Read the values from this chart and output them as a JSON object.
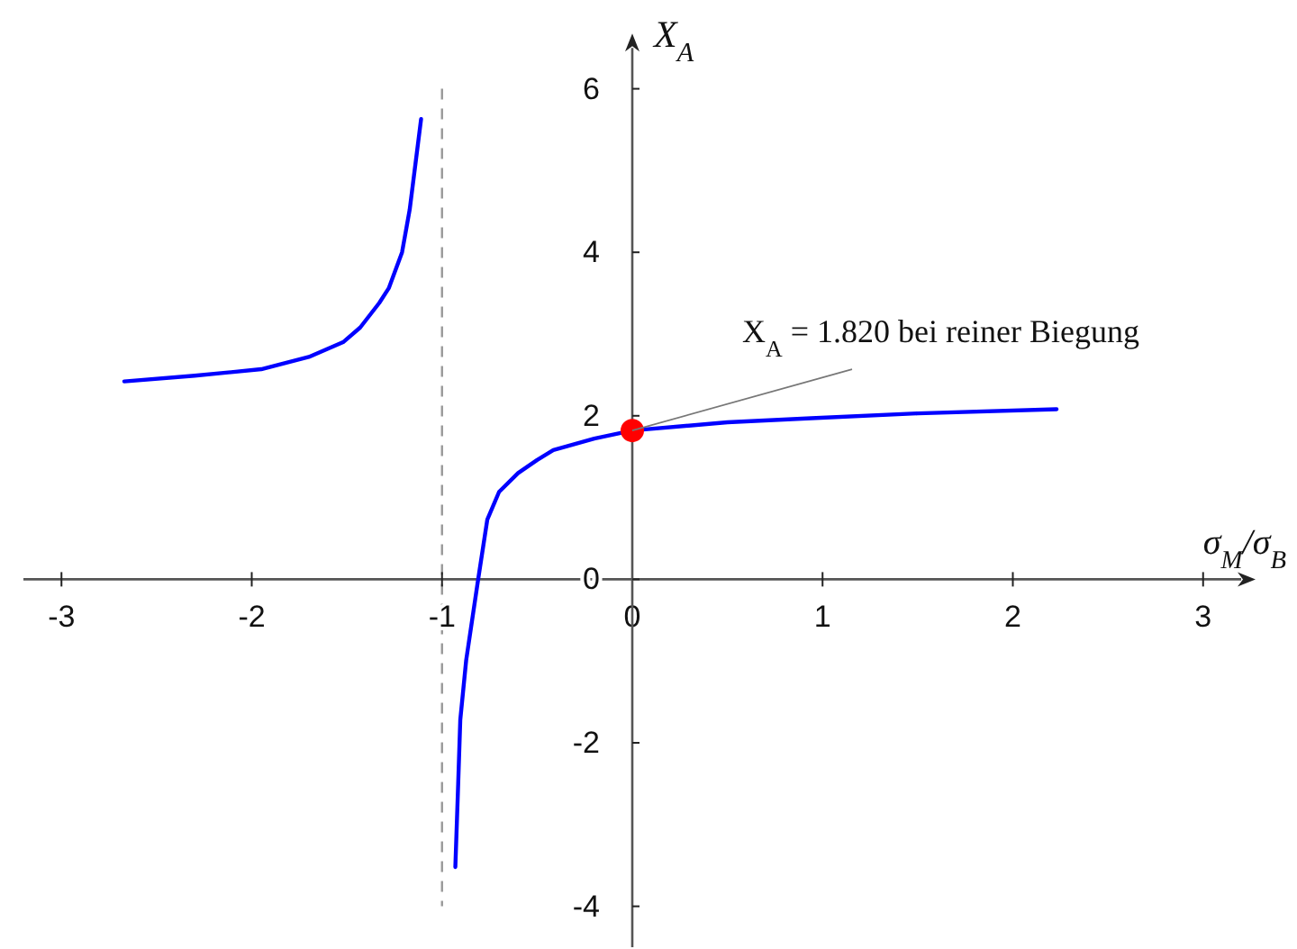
{
  "chart_data": {
    "type": "line",
    "xlabel": "σ$_{M}$/σ$_{B}$",
    "ylabel": "X$_{A}$",
    "xlim": [
      -3.2,
      3.2
    ],
    "ylim": [
      -4.5,
      6.5
    ],
    "xticks": [
      -3,
      -2,
      -1,
      0,
      1,
      2,
      3
    ],
    "yticks": [
      -4,
      -2,
      0,
      2,
      4,
      6
    ],
    "line_style": "solid",
    "series": [
      {
        "color": "#0000ff",
        "x": [
          -2.67,
          -2.3,
          -1.95,
          -1.7,
          -1.52,
          -1.43,
          -1.33,
          -1.28,
          -1.21,
          -1.17,
          -1.11
        ],
        "values": [
          2.42,
          2.49,
          2.57,
          2.72,
          2.9,
          3.08,
          3.38,
          3.56,
          4.0,
          4.52,
          5.63
        ]
      },
      {
        "color": "#0000ff",
        "x": [
          -0.93,
          -0.915,
          -0.904,
          -0.873,
          -0.81,
          -0.762,
          -0.7,
          -0.6,
          -0.5,
          -0.415,
          -0.2,
          0,
          0.5,
          0.94,
          1.5,
          2.23
        ],
        "values": [
          -3.52,
          -2.5,
          -1.72,
          -0.99,
          0,
          0.73,
          1.07,
          1.3,
          1.46,
          1.58,
          1.72,
          1.82,
          1.92,
          1.97,
          2.03,
          2.08
        ]
      },
      {
        "type": "scatter",
        "color": "#ff0000",
        "marker": "circle",
        "x": [
          0
        ],
        "values": [
          1.82
        ]
      }
    ],
    "ref_lines": [
      {
        "axis": "x",
        "value": -1,
        "color": "#999999",
        "line_style": "dashed"
      }
    ],
    "annotations": [
      {
        "text": "X$_{A}$ = 1.820 bei reiner Biegung",
        "x": 0,
        "y": 1.82
      }
    ]
  }
}
